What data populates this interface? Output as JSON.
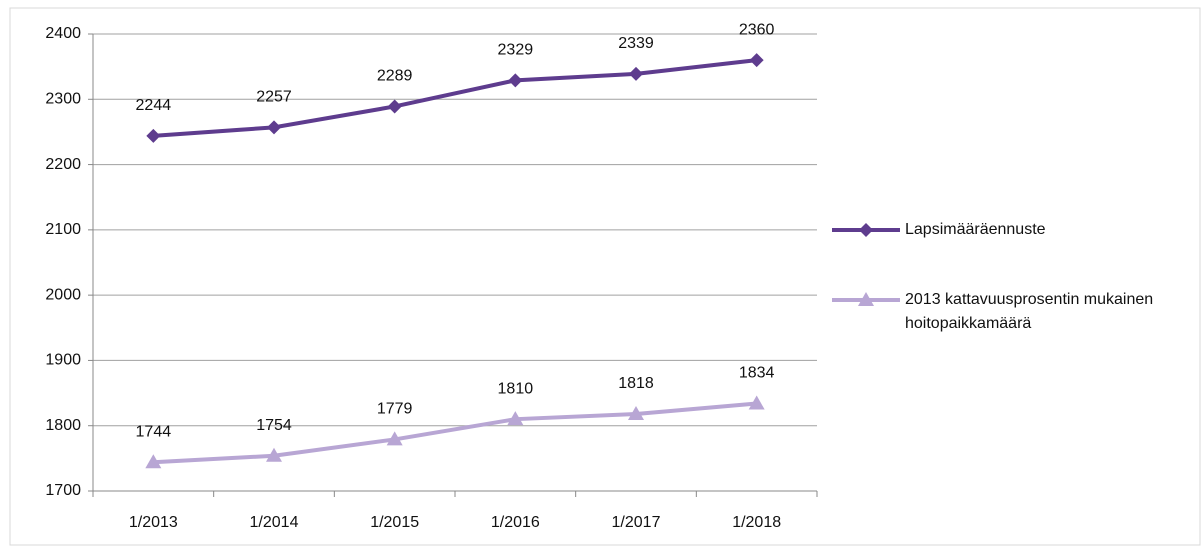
{
  "chart_data": {
    "type": "line",
    "categories": [
      "1/2013",
      "1/2014",
      "1/2015",
      "1/2016",
      "1/2017",
      "1/2018"
    ],
    "series": [
      {
        "name": "Lapsimääräennuste",
        "color": "#5e3c8e",
        "marker": "diamond",
        "values": [
          2244,
          2257,
          2289,
          2329,
          2339,
          2360
        ]
      },
      {
        "name": "2013 kattavuusprosentin mukainen hoitopaikkamäärä",
        "color": "#b8a6d4",
        "marker": "triangle",
        "values": [
          1744,
          1754,
          1779,
          1810,
          1818,
          1834
        ]
      }
    ],
    "ylim": [
      1700,
      2400
    ],
    "yticks": [
      1700,
      1800,
      1900,
      2000,
      2100,
      2200,
      2300,
      2400
    ],
    "grid": true,
    "legend": "right"
  }
}
